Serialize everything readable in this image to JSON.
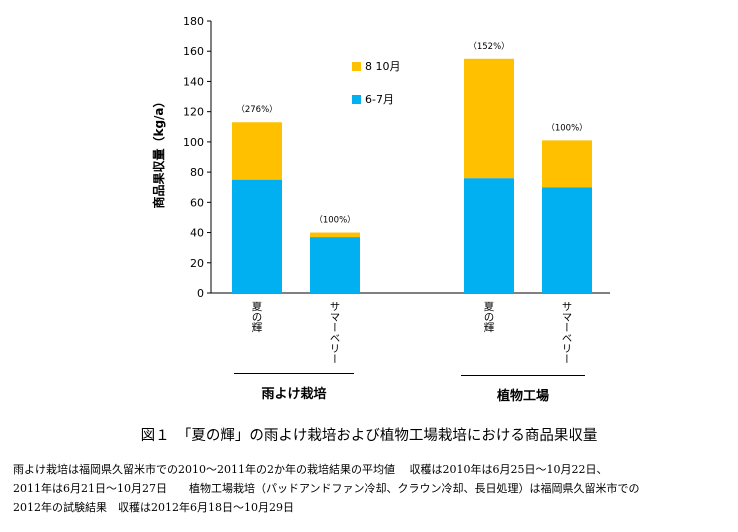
{
  "chart_data": {
    "type": "bar",
    "stacked": true,
    "ylabel": "商品果収量（kg/a）",
    "ylim": [
      0,
      180
    ],
    "yticks": [
      0,
      20,
      40,
      60,
      80,
      100,
      120,
      140,
      160,
      180
    ],
    "grid": false,
    "legend_position": "top-center",
    "categories": [
      "夏の輝",
      "サマーベリー",
      "夏の輝",
      "サマーベリー"
    ],
    "groups": [
      {
        "label": "雨よけ栽培",
        "categories": [
          0,
          1
        ]
      },
      {
        "label": "植物工場",
        "categories": [
          2,
          3
        ]
      }
    ],
    "series": [
      {
        "name": "6-7月",
        "color": "#00b0f0",
        "values": [
          75,
          37,
          76,
          70
        ]
      },
      {
        "name": "8 10月",
        "color": "#ffc000",
        "values": [
          38,
          3,
          79,
          31
        ]
      }
    ],
    "annotations": [
      "（276%）",
      "（100%）",
      "（152%）",
      "（100%）"
    ]
  },
  "caption": "図１　「夏の輝」の雨よけ栽培および植物工場栽培における商品果収量",
  "notes": [
    "雨よけ栽培は福岡県久留米市での2010～2011年の2か年の栽培結果の平均値　 収穫は2010年は6月25日～10月22日、",
    "2011年は6月21日～10月27日　　植物工場栽培（パッドアンドファン冷却、クラウン冷却、長日処理）は福岡県久留米市での",
    "2012年の試験結果　収穫は2012年6月18日～10月29日"
  ]
}
